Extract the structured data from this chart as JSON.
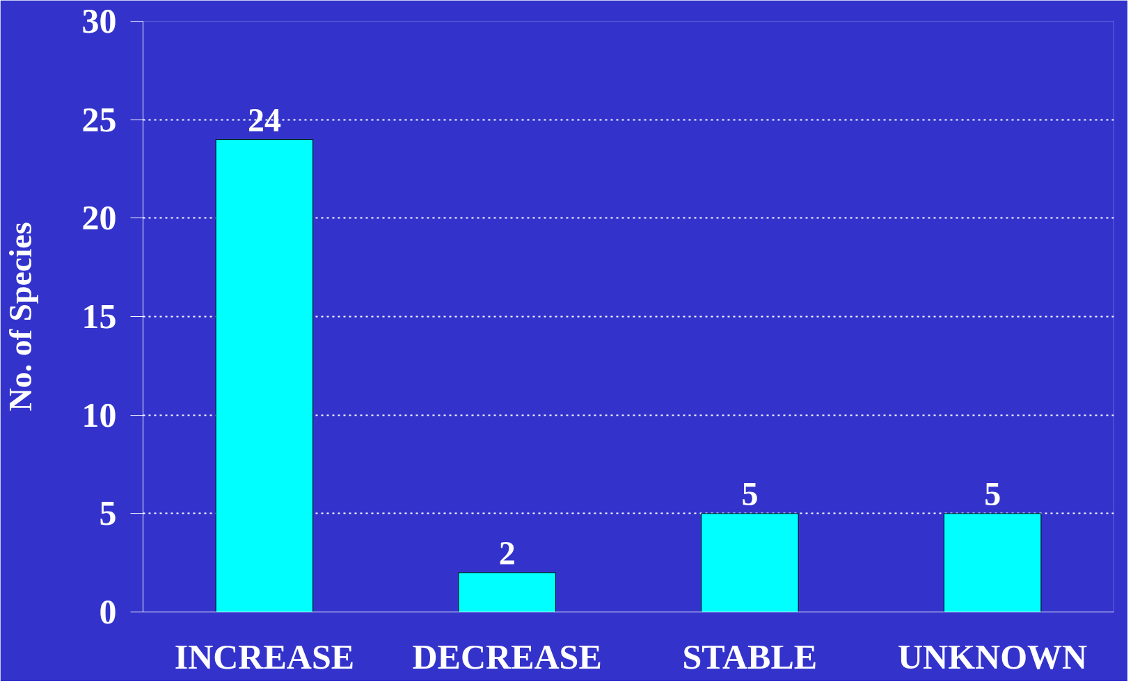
{
  "chart_data": {
    "type": "bar",
    "ylabel": "No. of Species",
    "categories": [
      "INCREASE",
      "DECREASE",
      "STABLE",
      "UNKNOWN"
    ],
    "values": [
      24,
      2,
      5,
      5
    ],
    "color": "#00ffff",
    "ylim": [
      0,
      30
    ],
    "yticks": [
      0,
      5,
      10,
      15,
      20,
      25,
      30
    ],
    "grid": "y",
    "data_labels": true
  }
}
